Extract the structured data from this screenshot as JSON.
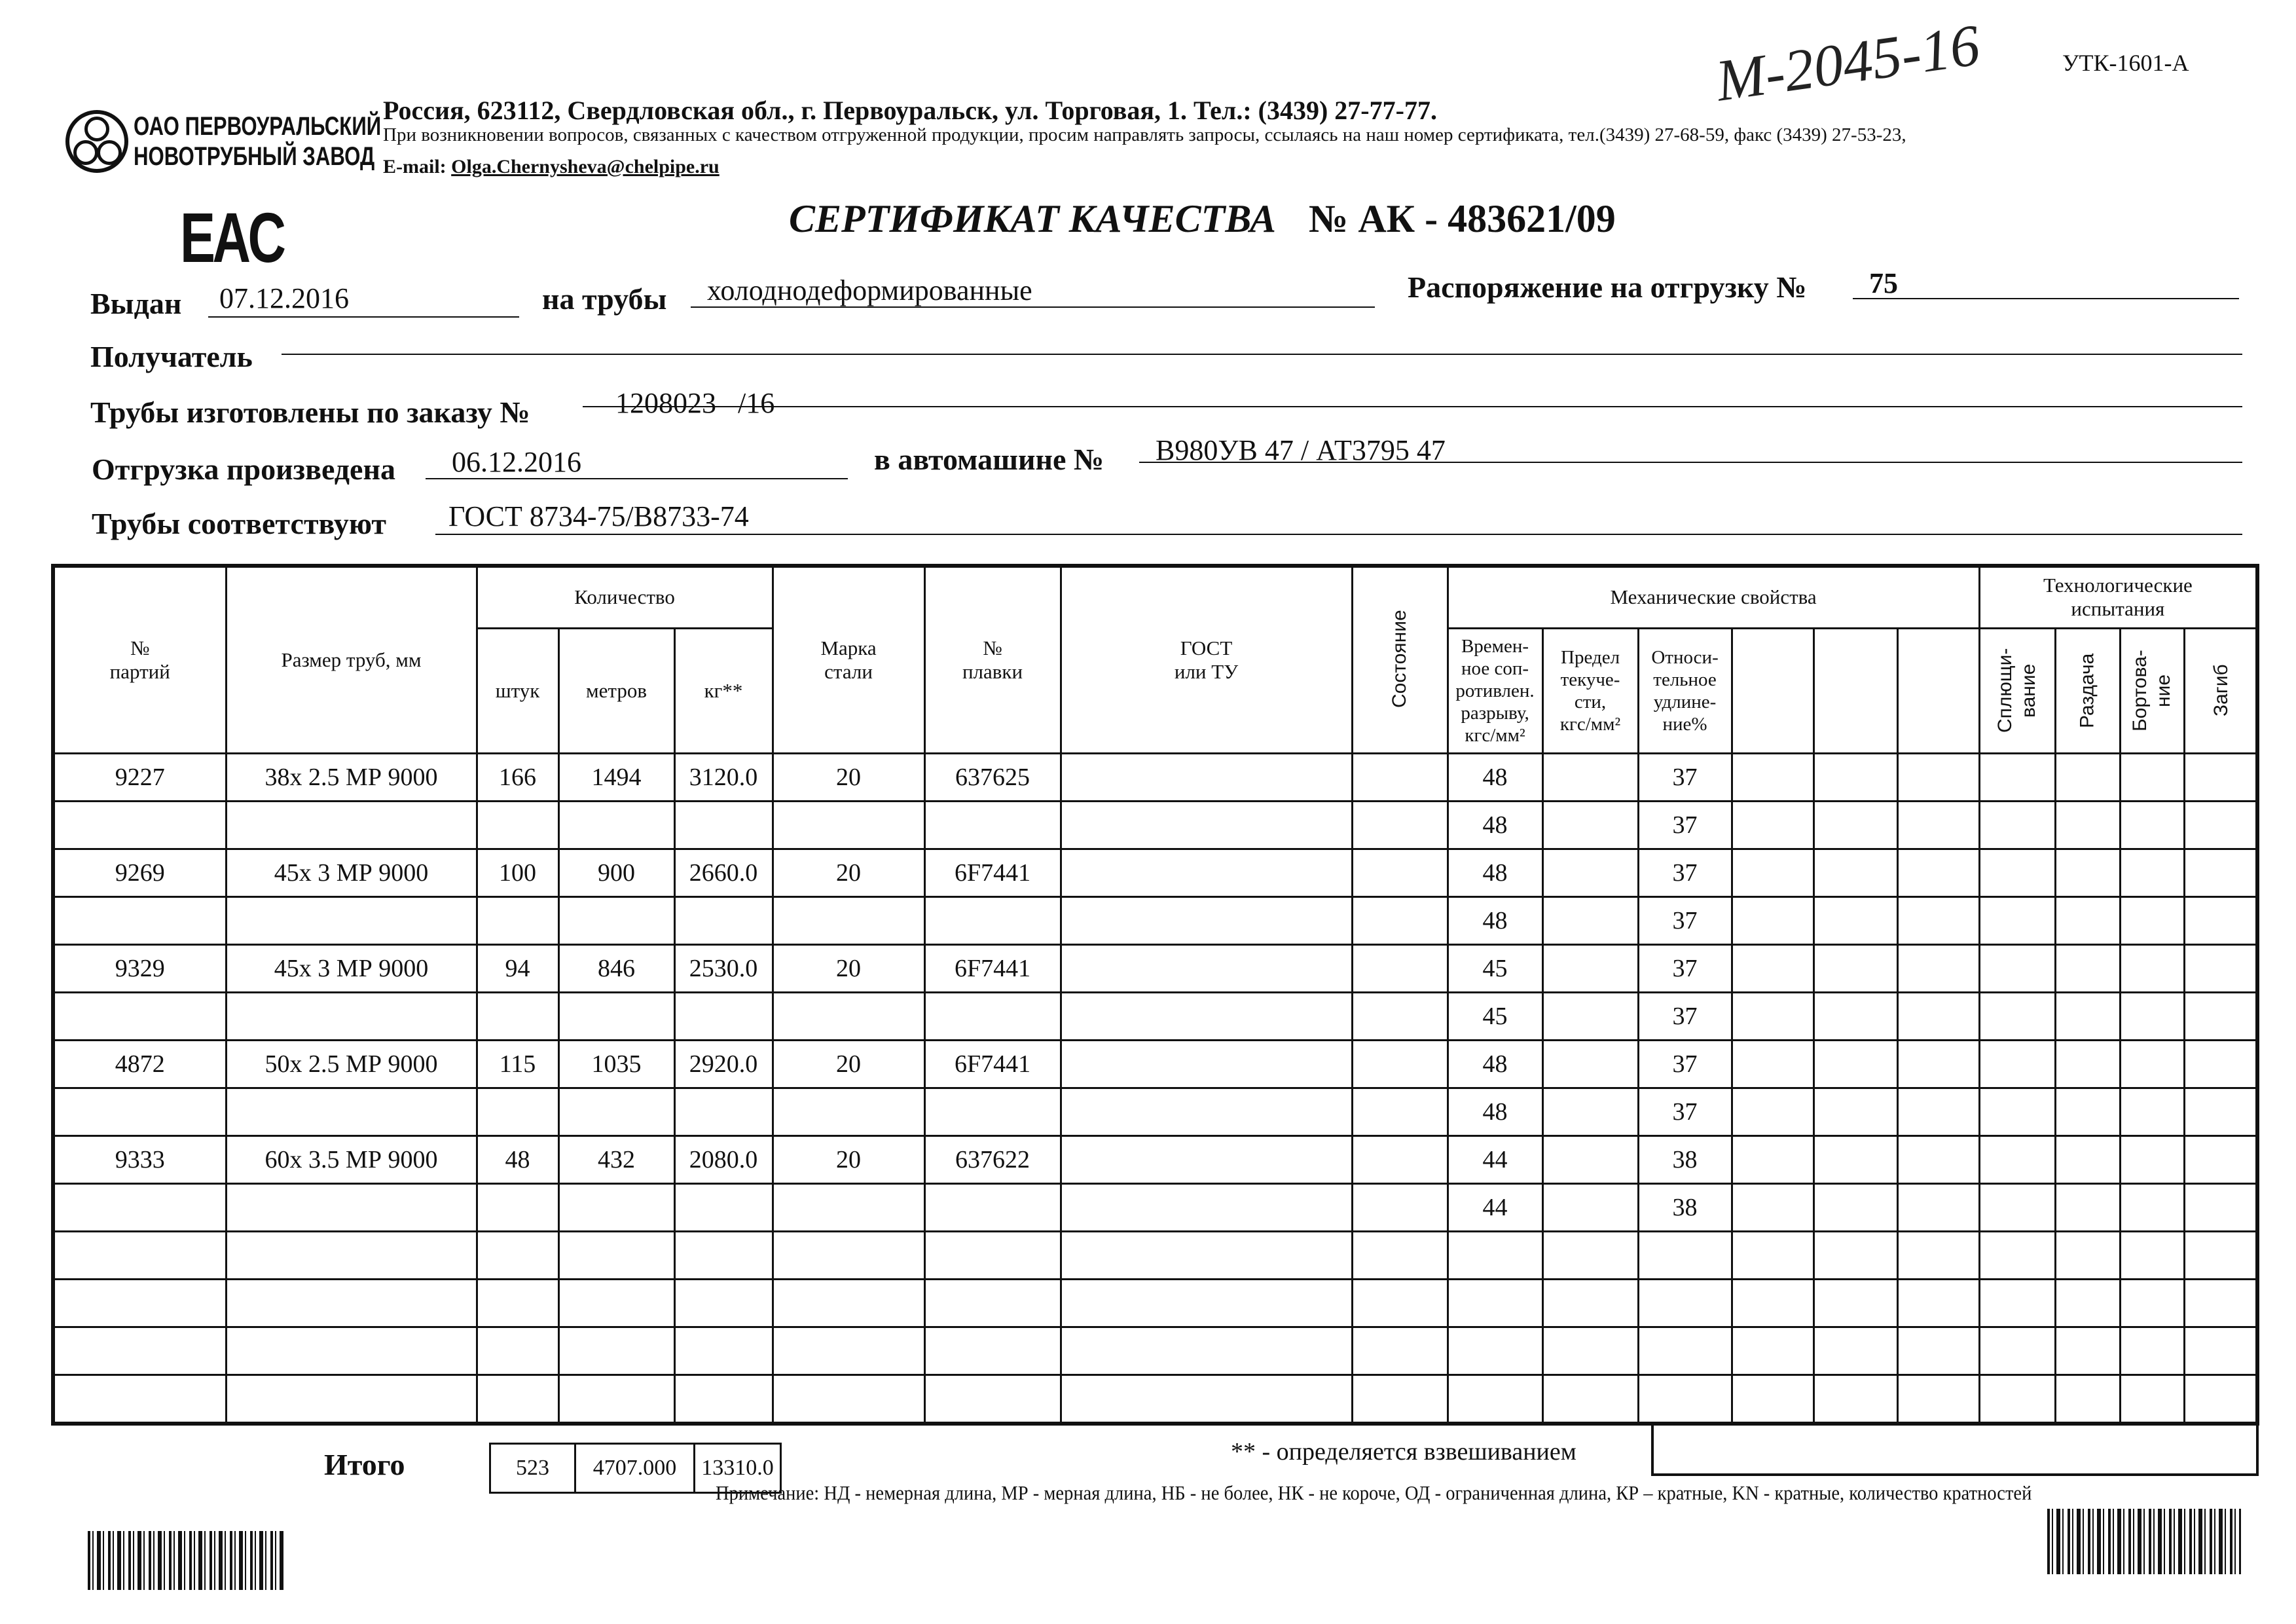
{
  "header": {
    "company_line1": "ОАО ПЕРВОУРАЛЬСКИЙ",
    "company_line2": "НОВОТРУБНЫЙ ЗАВОД",
    "address": "Россия, 623112, Свердловская обл., г. Первоуральск, ул. Торговая, 1. Тел.: (3439) 27-77-77.",
    "inquiry": "При возникновении вопросов, связанных с качеством отгруженной продукции, просим направлять запросы, ссылаясь на наш номер сертификата, тел.(3439) 27-68-59, факс (3439) 27-53-23,",
    "email_label": "E-mail:",
    "email": "Olga.Chernysheva@chelpipe.ru",
    "form_code": "УТК-1601-А",
    "handwritten_note": "М-2045-16",
    "eac_mark": "EAC"
  },
  "certificate": {
    "title": "СЕРТИФИКАТ КАЧЕСТВА",
    "number": "№  АК -  483621/09"
  },
  "fields": {
    "issued_label": "Выдан",
    "issued": "07.12.2016",
    "pipes_label": "на трубы",
    "pipes": "холоднодеформированные",
    "order_label": "Распоряжение на отгрузку №",
    "order": "75",
    "recipient_label": "Получатель",
    "recipient": "",
    "made_label": "Трубы изготовлены по заказу №",
    "made": "1208023   /16",
    "shipped_label": "Отгрузка произведена",
    "shipped": "06.12.2016",
    "vehicle_label": "в автомашине №",
    "vehicle": "В980УВ 47 / АТ3795 47",
    "conform_label": "Трубы соответствуют",
    "conform": "ГОСТ 8734-75/В8733-74"
  },
  "table": {
    "headers": {
      "party": "№\nпартий",
      "size": "Размер труб, мм",
      "quantity": "Количество",
      "pcs": "штук",
      "meters": "метров",
      "kg": "кг**",
      "grade": "Марка\nстали",
      "heat": "№\nплавки",
      "gost": "ГОСТ\nили ТУ",
      "state": "Состояние",
      "mech": "Механические свойства",
      "tensile": "Времен-\nное соп-\nротивлен.\nразрыву,\nкгс/мм²",
      "yield": "Предел\nтекуче-\nсти,\nкгс/мм²",
      "elong": "Относи-\nтельное\nудлине-\nние%",
      "tech": "Технологические\nиспытания",
      "flatten": "Сплющи-\nвание",
      "expand": "Раздача",
      "flange": "Бортова-\nние",
      "bend": "Загиб"
    },
    "rows": [
      {
        "party": "9227",
        "size": "38x 2.5 МР 9000",
        "pcs": "166",
        "meters": "1494",
        "kg": "3120.0",
        "grade": "20",
        "heat": "637625",
        "tensile": "48",
        "elong": "37"
      },
      {
        "party": "",
        "size": "",
        "pcs": "",
        "meters": "",
        "kg": "",
        "grade": "",
        "heat": "",
        "tensile": "48",
        "elong": "37"
      },
      {
        "party": "9269",
        "size": "45x 3 МР 9000",
        "pcs": "100",
        "meters": "900",
        "kg": "2660.0",
        "grade": "20",
        "heat": "6F7441",
        "tensile": "48",
        "elong": "37"
      },
      {
        "party": "",
        "size": "",
        "pcs": "",
        "meters": "",
        "kg": "",
        "grade": "",
        "heat": "",
        "tensile": "48",
        "elong": "37"
      },
      {
        "party": "9329",
        "size": "45x 3 МР 9000",
        "pcs": "94",
        "meters": "846",
        "kg": "2530.0",
        "grade": "20",
        "heat": "6F7441",
        "tensile": "45",
        "elong": "37"
      },
      {
        "party": "",
        "size": "",
        "pcs": "",
        "meters": "",
        "kg": "",
        "grade": "",
        "heat": "",
        "tensile": "45",
        "elong": "37"
      },
      {
        "party": "4872",
        "size": "50x 2.5 МР 9000",
        "pcs": "115",
        "meters": "1035",
        "kg": "2920.0",
        "grade": "20",
        "heat": "6F7441",
        "tensile": "48",
        "elong": "37"
      },
      {
        "party": "",
        "size": "",
        "pcs": "",
        "meters": "",
        "kg": "",
        "grade": "",
        "heat": "",
        "tensile": "48",
        "elong": "37"
      },
      {
        "party": "9333",
        "size": "60x 3.5 МР 9000",
        "pcs": "48",
        "meters": "432",
        "kg": "2080.0",
        "grade": "20",
        "heat": "637622",
        "tensile": "44",
        "elong": "38"
      },
      {
        "party": "",
        "size": "",
        "pcs": "",
        "meters": "",
        "kg": "",
        "grade": "",
        "heat": "",
        "tensile": "44",
        "elong": "38"
      },
      {
        "party": "",
        "size": "",
        "pcs": "",
        "meters": "",
        "kg": "",
        "grade": "",
        "heat": "",
        "tensile": "",
        "elong": ""
      },
      {
        "party": "",
        "size": "",
        "pcs": "",
        "meters": "",
        "kg": "",
        "grade": "",
        "heat": "",
        "tensile": "",
        "elong": ""
      },
      {
        "party": "",
        "size": "",
        "pcs": "",
        "meters": "",
        "kg": "",
        "grade": "",
        "heat": "",
        "tensile": "",
        "elong": ""
      },
      {
        "party": "",
        "size": "",
        "pcs": "",
        "meters": "",
        "kg": "",
        "grade": "",
        "heat": "",
        "tensile": "",
        "elong": ""
      }
    ],
    "totals": {
      "label": "Итого",
      "pcs": "523",
      "meters": "4707.000",
      "kg": "13310.0"
    }
  },
  "footnote": "** - определяется взвешиванием",
  "note": "Примечание: НД - немерная длина, МР - мерная длина, НБ - не более, НК - не короче, ОД - ограниченная длина, КР – кратные, KN - кратные, количество кратностей"
}
